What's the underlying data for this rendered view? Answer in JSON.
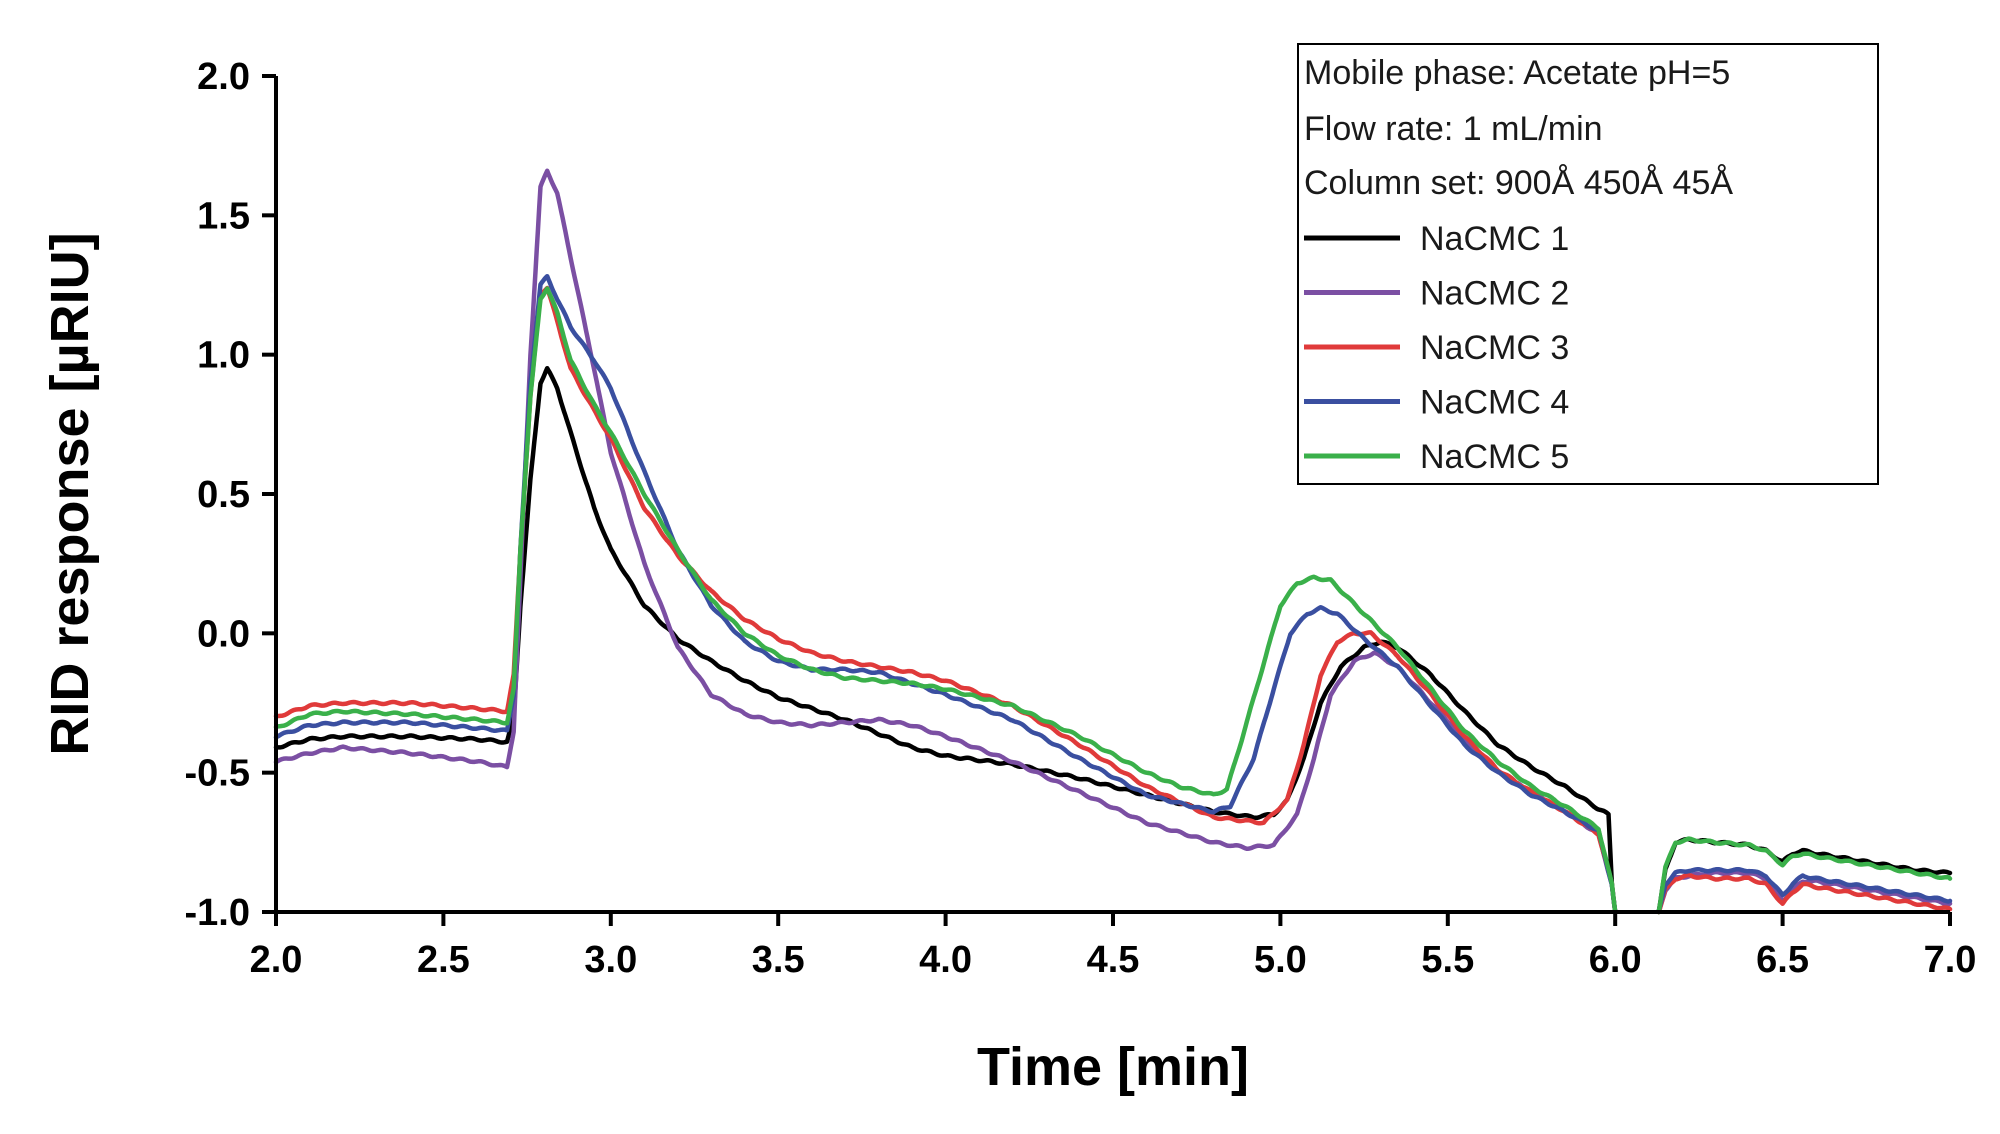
{
  "chart_data": {
    "type": "line",
    "title": "",
    "xlabel": "Time [min]",
    "ylabel": "RID response [µRIU]",
    "xlim": [
      2.0,
      7.0
    ],
    "ylim": [
      -1.0,
      2.0
    ],
    "x_ticks": [
      "2.0",
      "2.5",
      "3.0",
      "3.5",
      "4.0",
      "4.5",
      "5.0",
      "5.5",
      "6.0",
      "6.5",
      "7.0"
    ],
    "y_ticks": [
      "-1.0",
      "-0.5",
      "0.0",
      "0.5",
      "1.0",
      "1.5",
      "2.0"
    ],
    "grid": false,
    "legend_position": "top-right",
    "annotations": [
      "Mobile phase: Acetate pH=5",
      "Flow rate: 1 mL/min",
      "Column set: 900Å 450Å 45Å"
    ],
    "series": [
      {
        "name": "NaCMC 1",
        "color": "#000000",
        "points": [
          [
            2.0,
            -0.41
          ],
          [
            2.1,
            -0.38
          ],
          [
            2.2,
            -0.37
          ],
          [
            2.4,
            -0.37
          ],
          [
            2.6,
            -0.38
          ],
          [
            2.69,
            -0.39
          ],
          [
            2.71,
            -0.3
          ],
          [
            2.73,
            0.1
          ],
          [
            2.76,
            0.55
          ],
          [
            2.79,
            0.9
          ],
          [
            2.81,
            0.95
          ],
          [
            2.84,
            0.88
          ],
          [
            2.88,
            0.72
          ],
          [
            2.95,
            0.45
          ],
          [
            3.0,
            0.3
          ],
          [
            3.1,
            0.1
          ],
          [
            3.2,
            -0.02
          ],
          [
            3.3,
            -0.1
          ],
          [
            3.4,
            -0.17
          ],
          [
            3.5,
            -0.23
          ],
          [
            3.6,
            -0.27
          ],
          [
            3.7,
            -0.31
          ],
          [
            3.8,
            -0.36
          ],
          [
            3.9,
            -0.41
          ],
          [
            4.0,
            -0.44
          ],
          [
            4.2,
            -0.47
          ],
          [
            4.4,
            -0.52
          ],
          [
            4.6,
            -0.58
          ],
          [
            4.8,
            -0.64
          ],
          [
            4.92,
            -0.66
          ],
          [
            4.98,
            -0.65
          ],
          [
            5.02,
            -0.6
          ],
          [
            5.07,
            -0.45
          ],
          [
            5.12,
            -0.25
          ],
          [
            5.18,
            -0.12
          ],
          [
            5.25,
            -0.05
          ],
          [
            5.3,
            -0.03
          ],
          [
            5.35,
            -0.05
          ],
          [
            5.45,
            -0.15
          ],
          [
            5.55,
            -0.28
          ],
          [
            5.65,
            -0.4
          ],
          [
            5.75,
            -0.48
          ],
          [
            5.85,
            -0.55
          ],
          [
            5.95,
            -0.63
          ],
          [
            5.98,
            -0.65
          ],
          [
            5.99,
            -0.9
          ],
          [
            6.0,
            -1.0
          ]
        ]
      },
      {
        "name": "NaCMC 2",
        "color": "#7b4fa3",
        "points": [
          [
            2.0,
            -0.46
          ],
          [
            2.1,
            -0.43
          ],
          [
            2.2,
            -0.41
          ],
          [
            2.4,
            -0.43
          ],
          [
            2.6,
            -0.46
          ],
          [
            2.69,
            -0.48
          ],
          [
            2.71,
            -0.35
          ],
          [
            2.73,
            0.2
          ],
          [
            2.76,
            1.0
          ],
          [
            2.79,
            1.6
          ],
          [
            2.81,
            1.66
          ],
          [
            2.84,
            1.58
          ],
          [
            2.88,
            1.35
          ],
          [
            2.95,
            0.95
          ],
          [
            3.0,
            0.65
          ],
          [
            3.1,
            0.25
          ],
          [
            3.2,
            -0.05
          ],
          [
            3.3,
            -0.22
          ],
          [
            3.4,
            -0.29
          ],
          [
            3.5,
            -0.32
          ],
          [
            3.6,
            -0.33
          ],
          [
            3.7,
            -0.32
          ],
          [
            3.8,
            -0.31
          ],
          [
            3.9,
            -0.33
          ],
          [
            4.0,
            -0.37
          ],
          [
            4.2,
            -0.46
          ],
          [
            4.4,
            -0.57
          ],
          [
            4.6,
            -0.68
          ],
          [
            4.8,
            -0.75
          ],
          [
            4.9,
            -0.77
          ],
          [
            4.98,
            -0.76
          ],
          [
            5.05,
            -0.65
          ],
          [
            5.1,
            -0.45
          ],
          [
            5.15,
            -0.22
          ],
          [
            5.22,
            -0.1
          ],
          [
            5.28,
            -0.07
          ],
          [
            5.35,
            -0.12
          ],
          [
            5.45,
            -0.25
          ],
          [
            5.55,
            -0.38
          ],
          [
            5.65,
            -0.5
          ],
          [
            5.75,
            -0.57
          ],
          [
            5.85,
            -0.64
          ],
          [
            5.95,
            -0.72
          ],
          [
            5.99,
            -0.9
          ],
          [
            6.0,
            -1.0
          ]
        ]
      },
      {
        "name": "NaCMC 3",
        "color": "#e03a3a",
        "points": [
          [
            2.0,
            -0.3
          ],
          [
            2.1,
            -0.26
          ],
          [
            2.2,
            -0.25
          ],
          [
            2.4,
            -0.25
          ],
          [
            2.6,
            -0.27
          ],
          [
            2.69,
            -0.28
          ],
          [
            2.71,
            -0.15
          ],
          [
            2.73,
            0.3
          ],
          [
            2.76,
            0.85
          ],
          [
            2.79,
            1.22
          ],
          [
            2.81,
            1.24
          ],
          [
            2.84,
            1.12
          ],
          [
            2.88,
            0.95
          ],
          [
            2.95,
            0.8
          ],
          [
            3.0,
            0.7
          ],
          [
            3.1,
            0.45
          ],
          [
            3.2,
            0.28
          ],
          [
            3.3,
            0.15
          ],
          [
            3.4,
            0.05
          ],
          [
            3.5,
            -0.02
          ],
          [
            3.6,
            -0.07
          ],
          [
            3.7,
            -0.1
          ],
          [
            3.8,
            -0.12
          ],
          [
            3.9,
            -0.14
          ],
          [
            4.0,
            -0.17
          ],
          [
            4.2,
            -0.26
          ],
          [
            4.4,
            -0.4
          ],
          [
            4.6,
            -0.55
          ],
          [
            4.8,
            -0.66
          ],
          [
            4.95,
            -0.68
          ],
          [
            5.02,
            -0.6
          ],
          [
            5.07,
            -0.4
          ],
          [
            5.12,
            -0.15
          ],
          [
            5.17,
            -0.03
          ],
          [
            5.22,
            0.0
          ],
          [
            5.27,
            0.0
          ],
          [
            5.35,
            -0.08
          ],
          [
            5.45,
            -0.22
          ],
          [
            5.55,
            -0.37
          ],
          [
            5.65,
            -0.49
          ],
          [
            5.75,
            -0.57
          ],
          [
            5.85,
            -0.64
          ],
          [
            5.95,
            -0.72
          ],
          [
            5.99,
            -0.9
          ],
          [
            6.0,
            -1.0
          ]
        ]
      },
      {
        "name": "NaCMC 4",
        "color": "#3a4fa0",
        "points": [
          [
            2.0,
            -0.37
          ],
          [
            2.1,
            -0.33
          ],
          [
            2.2,
            -0.32
          ],
          [
            2.4,
            -0.32
          ],
          [
            2.6,
            -0.34
          ],
          [
            2.69,
            -0.35
          ],
          [
            2.71,
            -0.22
          ],
          [
            2.73,
            0.3
          ],
          [
            2.76,
            0.9
          ],
          [
            2.79,
            1.25
          ],
          [
            2.81,
            1.28
          ],
          [
            2.84,
            1.2
          ],
          [
            2.88,
            1.1
          ],
          [
            2.95,
            0.98
          ],
          [
            3.0,
            0.88
          ],
          [
            3.1,
            0.58
          ],
          [
            3.2,
            0.3
          ],
          [
            3.3,
            0.1
          ],
          [
            3.4,
            -0.03
          ],
          [
            3.5,
            -0.1
          ],
          [
            3.6,
            -0.13
          ],
          [
            3.7,
            -0.13
          ],
          [
            3.8,
            -0.14
          ],
          [
            3.9,
            -0.18
          ],
          [
            4.0,
            -0.22
          ],
          [
            4.2,
            -0.31
          ],
          [
            4.4,
            -0.45
          ],
          [
            4.6,
            -0.58
          ],
          [
            4.8,
            -0.64
          ],
          [
            4.85,
            -0.62
          ],
          [
            4.92,
            -0.45
          ],
          [
            4.98,
            -0.2
          ],
          [
            5.03,
            0.0
          ],
          [
            5.08,
            0.07
          ],
          [
            5.12,
            0.09
          ],
          [
            5.17,
            0.07
          ],
          [
            5.25,
            -0.02
          ],
          [
            5.35,
            -0.12
          ],
          [
            5.45,
            -0.26
          ],
          [
            5.55,
            -0.4
          ],
          [
            5.65,
            -0.5
          ],
          [
            5.75,
            -0.58
          ],
          [
            5.85,
            -0.64
          ],
          [
            5.95,
            -0.71
          ],
          [
            5.99,
            -0.9
          ],
          [
            6.0,
            -1.0
          ]
        ]
      },
      {
        "name": "NaCMC 5",
        "color": "#3ab04a",
        "points": [
          [
            2.0,
            -0.34
          ],
          [
            2.1,
            -0.29
          ],
          [
            2.2,
            -0.28
          ],
          [
            2.4,
            -0.29
          ],
          [
            2.6,
            -0.31
          ],
          [
            2.69,
            -0.32
          ],
          [
            2.71,
            -0.2
          ],
          [
            2.73,
            0.3
          ],
          [
            2.76,
            0.85
          ],
          [
            2.79,
            1.2
          ],
          [
            2.81,
            1.24
          ],
          [
            2.84,
            1.15
          ],
          [
            2.88,
            0.98
          ],
          [
            2.95,
            0.82
          ],
          [
            3.0,
            0.72
          ],
          [
            3.1,
            0.5
          ],
          [
            3.2,
            0.3
          ],
          [
            3.3,
            0.12
          ],
          [
            3.4,
            0.0
          ],
          [
            3.5,
            -0.08
          ],
          [
            3.6,
            -0.13
          ],
          [
            3.7,
            -0.16
          ],
          [
            3.8,
            -0.17
          ],
          [
            3.9,
            -0.18
          ],
          [
            4.0,
            -0.2
          ],
          [
            4.2,
            -0.26
          ],
          [
            4.4,
            -0.37
          ],
          [
            4.6,
            -0.5
          ],
          [
            4.7,
            -0.55
          ],
          [
            4.8,
            -0.58
          ],
          [
            4.84,
            -0.56
          ],
          [
            4.88,
            -0.4
          ],
          [
            4.94,
            -0.15
          ],
          [
            5.0,
            0.1
          ],
          [
            5.05,
            0.18
          ],
          [
            5.1,
            0.2
          ],
          [
            5.15,
            0.19
          ],
          [
            5.25,
            0.07
          ],
          [
            5.35,
            -0.05
          ],
          [
            5.45,
            -0.2
          ],
          [
            5.55,
            -0.35
          ],
          [
            5.65,
            -0.46
          ],
          [
            5.75,
            -0.55
          ],
          [
            5.85,
            -0.62
          ],
          [
            5.95,
            -0.7
          ],
          [
            5.99,
            -0.9
          ],
          [
            6.0,
            -1.0
          ]
        ]
      }
    ],
    "series_tail": [
      {
        "name": "NaCMC 1",
        "points": [
          [
            6.13,
            -1.0
          ],
          [
            6.15,
            -0.85
          ],
          [
            6.18,
            -0.75
          ],
          [
            6.22,
            -0.74
          ],
          [
            6.3,
            -0.75
          ],
          [
            6.4,
            -0.76
          ],
          [
            6.45,
            -0.78
          ],
          [
            6.5,
            -0.82
          ],
          [
            6.53,
            -0.79
          ],
          [
            6.56,
            -0.78
          ],
          [
            6.6,
            -0.79
          ],
          [
            6.7,
            -0.81
          ],
          [
            6.8,
            -0.83
          ],
          [
            6.9,
            -0.85
          ],
          [
            7.0,
            -0.86
          ]
        ]
      },
      {
        "name": "NaCMC 2",
        "points": [
          [
            6.13,
            -1.0
          ],
          [
            6.15,
            -0.92
          ],
          [
            6.18,
            -0.88
          ],
          [
            6.22,
            -0.87
          ],
          [
            6.3,
            -0.86
          ],
          [
            6.4,
            -0.86
          ],
          [
            6.45,
            -0.88
          ],
          [
            6.5,
            -0.96
          ],
          [
            6.53,
            -0.92
          ],
          [
            6.56,
            -0.89
          ],
          [
            6.6,
            -0.89
          ],
          [
            6.7,
            -0.91
          ],
          [
            6.8,
            -0.93
          ],
          [
            6.9,
            -0.95
          ],
          [
            7.0,
            -0.97
          ]
        ]
      },
      {
        "name": "NaCMC 3",
        "points": [
          [
            6.13,
            -1.0
          ],
          [
            6.15,
            -0.92
          ],
          [
            6.18,
            -0.88
          ],
          [
            6.22,
            -0.87
          ],
          [
            6.3,
            -0.88
          ],
          [
            6.4,
            -0.88
          ],
          [
            6.45,
            -0.9
          ],
          [
            6.5,
            -0.97
          ],
          [
            6.53,
            -0.93
          ],
          [
            6.56,
            -0.9
          ],
          [
            6.6,
            -0.91
          ],
          [
            6.7,
            -0.93
          ],
          [
            6.8,
            -0.95
          ],
          [
            6.9,
            -0.97
          ],
          [
            7.0,
            -0.99
          ]
        ]
      },
      {
        "name": "NaCMC 4",
        "points": [
          [
            6.13,
            -1.0
          ],
          [
            6.15,
            -0.9
          ],
          [
            6.18,
            -0.86
          ],
          [
            6.22,
            -0.85
          ],
          [
            6.3,
            -0.85
          ],
          [
            6.4,
            -0.85
          ],
          [
            6.45,
            -0.87
          ],
          [
            6.5,
            -0.94
          ],
          [
            6.53,
            -0.9
          ],
          [
            6.56,
            -0.87
          ],
          [
            6.6,
            -0.88
          ],
          [
            6.7,
            -0.9
          ],
          [
            6.8,
            -0.92
          ],
          [
            6.9,
            -0.94
          ],
          [
            7.0,
            -0.96
          ]
        ]
      },
      {
        "name": "NaCMC 5",
        "points": [
          [
            6.13,
            -1.0
          ],
          [
            6.15,
            -0.84
          ],
          [
            6.18,
            -0.75
          ],
          [
            6.22,
            -0.74
          ],
          [
            6.3,
            -0.75
          ],
          [
            6.4,
            -0.76
          ],
          [
            6.45,
            -0.78
          ],
          [
            6.5,
            -0.83
          ],
          [
            6.53,
            -0.8
          ],
          [
            6.56,
            -0.79
          ],
          [
            6.6,
            -0.8
          ],
          [
            6.7,
            -0.82
          ],
          [
            6.8,
            -0.84
          ],
          [
            6.9,
            -0.86
          ],
          [
            7.0,
            -0.88
          ]
        ]
      }
    ]
  }
}
